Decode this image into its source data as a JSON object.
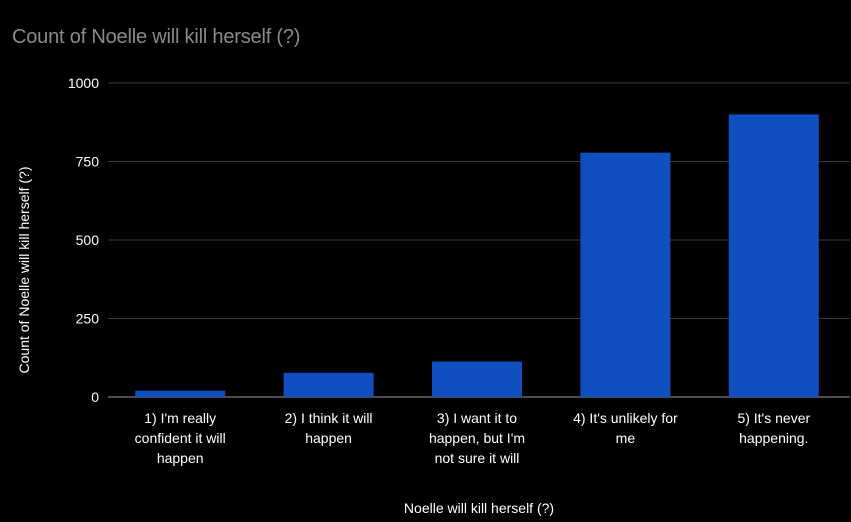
{
  "chart_data": {
    "type": "bar",
    "title": "Count of Noelle will kill herself (?)",
    "xlabel": "Noelle will kill herself (?)",
    "ylabel": "Count of Noelle will kill herself (?)",
    "categories": [
      [
        "1) I'm really",
        "confident it will",
        "happen"
      ],
      [
        "2) I think it will",
        "happen"
      ],
      [
        "3) I want it to",
        "happen, but I'm",
        "not sure it will"
      ],
      [
        "4) It's unlikely for",
        "me"
      ],
      [
        "5) It's never",
        "happening."
      ]
    ],
    "values": [
      20,
      77,
      113,
      778,
      900
    ],
    "ylim": [
      0,
      1000
    ],
    "yticks": [
      0,
      250,
      500,
      750,
      1000
    ],
    "grid": true,
    "legend": "none",
    "colors": {
      "bar": "#0f4fc0",
      "grid": "#3a3a3a",
      "background": "#000000"
    }
  }
}
